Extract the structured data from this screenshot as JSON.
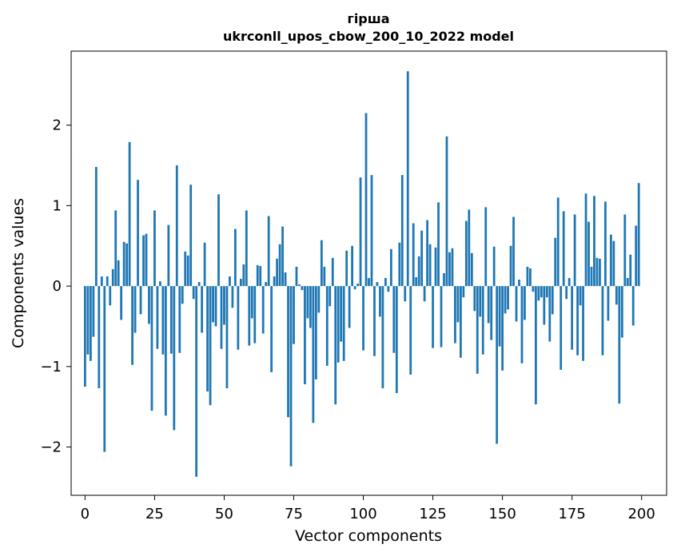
{
  "chart_data": {
    "type": "bar",
    "title_line1": "гірша",
    "title_line2": "ukrconll_upos_cbow_200_10_2022 model",
    "xlabel": "Vector components",
    "ylabel": "Components values",
    "xlim": [
      -5,
      209
    ],
    "ylim": [
      -2.6,
      2.92
    ],
    "xticks": [
      0,
      25,
      50,
      75,
      100,
      125,
      150,
      175,
      200
    ],
    "yticks": [
      -2,
      -1,
      0,
      1,
      2
    ],
    "ytick_labels": [
      "−2",
      "−1",
      "0",
      "1",
      "2"
    ],
    "bar_color": "#1f77b4",
    "grid": false,
    "values": [
      -1.25,
      -0.85,
      -0.93,
      -0.63,
      1.48,
      -1.27,
      0.12,
      -2.06,
      0.12,
      -0.24,
      0.21,
      0.94,
      0.32,
      -0.42,
      0.55,
      0.53,
      1.79,
      -0.98,
      -0.58,
      1.32,
      -0.35,
      0.63,
      0.65,
      -0.47,
      -1.55,
      0.94,
      -0.78,
      0.06,
      -0.85,
      -1.61,
      0.76,
      -0.84,
      -1.79,
      1.5,
      -0.83,
      -0.22,
      0.43,
      0.38,
      1.26,
      -0.16,
      -2.37,
      0.05,
      -0.58,
      0.54,
      -1.31,
      -1.48,
      -0.45,
      -0.5,
      1.14,
      -0.78,
      -0.48,
      -1.27,
      0.12,
      -0.27,
      0.71,
      -0.79,
      0.09,
      0.27,
      0.94,
      -0.74,
      -0.4,
      -0.71,
      0.26,
      0.25,
      -0.59,
      0.05,
      0.87,
      -1.07,
      0.12,
      0.34,
      0.52,
      0.74,
      0.17,
      -1.63,
      -2.24,
      -0.72,
      0.24,
      0.02,
      -0.05,
      -1.22,
      -0.4,
      -0.52,
      -1.7,
      -1.16,
      -0.33,
      0.57,
      0.24,
      -0.99,
      -0.25,
      0.35,
      -1.47,
      -0.95,
      -0.69,
      -0.93,
      0.44,
      -0.52,
      0.5,
      -0.04,
      0.03,
      1.35,
      -0.8,
      2.15,
      0.1,
      1.38,
      -0.87,
      0.05,
      -0.38,
      -1.27,
      0.1,
      -0.07,
      0.46,
      -0.83,
      -1.33,
      0.54,
      1.38,
      -0.19,
      2.67,
      -1.1,
      0.78,
      0.11,
      0.37,
      0.69,
      -0.19,
      0.82,
      0.52,
      -0.77,
      0.48,
      1.04,
      -0.76,
      0.16,
      1.86,
      0.42,
      0.47,
      -0.71,
      -0.45,
      -0.89,
      -0.14,
      0.81,
      0.95,
      0.41,
      -0.31,
      -1.09,
      -0.38,
      -0.85,
      0.98,
      -0.46,
      -0.67,
      0.49,
      -1.96,
      -0.75,
      -1.05,
      -0.34,
      -0.29,
      0.5,
      0.86,
      -0.44,
      0.08,
      -0.96,
      -0.42,
      0.24,
      0.22,
      -0.07,
      -1.47,
      -0.18,
      -0.14,
      -0.48,
      -0.14,
      -0.69,
      -0.35,
      0.6,
      1.1,
      -1.04,
      0.93,
      -0.16,
      0.1,
      -0.79,
      0.89,
      -0.86,
      -0.24,
      -0.93,
      1.15,
      0.8,
      0.24,
      1.12,
      0.35,
      0.34,
      -0.86,
      1.05,
      -0.43,
      0.64,
      0.56,
      -0.23,
      -1.46,
      -0.64,
      0.89,
      0.1,
      0.39,
      -0.49,
      0.75,
      1.28
    ]
  }
}
